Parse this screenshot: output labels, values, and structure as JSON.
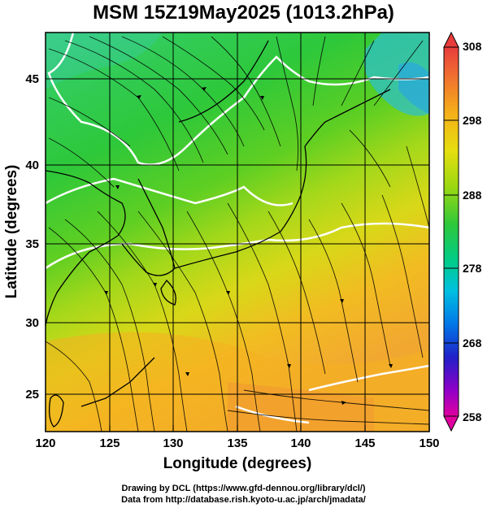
{
  "title": "MSM 15Z19May2025 (1013.2hPa)",
  "x_axis": {
    "label": "Longitude (degrees)",
    "ticks": [
      "120",
      "125",
      "130",
      "135",
      "140",
      "145",
      "150"
    ]
  },
  "y_axis": {
    "label": "Latitude  (degrees)",
    "ticks": [
      "25",
      "30",
      "35",
      "40",
      "45"
    ]
  },
  "colorbar": {
    "labels": [
      "308",
      "298",
      "288",
      "278",
      "268",
      "258"
    ],
    "colors": [
      "#e8005a",
      "#b000c8",
      "#4a00c8",
      "#0030e0",
      "#0090e8",
      "#00d8c0",
      "#00d060",
      "#3ccc14",
      "#8ad810",
      "#d8e010",
      "#f5c814",
      "#f59a28",
      "#f07030",
      "#e83c3c"
    ]
  },
  "footer": {
    "line1": "Drawing by DCL (https://www.gfd-dennou.org/library/dcl/)",
    "line2": "Data from http://database.rish.kyoto-u.ac.jp/arch/jmadata/"
  },
  "map": {
    "lon_range": [
      120,
      150
    ],
    "lat_range": [
      22.4,
      47.6
    ],
    "field": "temperature (K) with surface wind streamlines",
    "grid": true
  }
}
